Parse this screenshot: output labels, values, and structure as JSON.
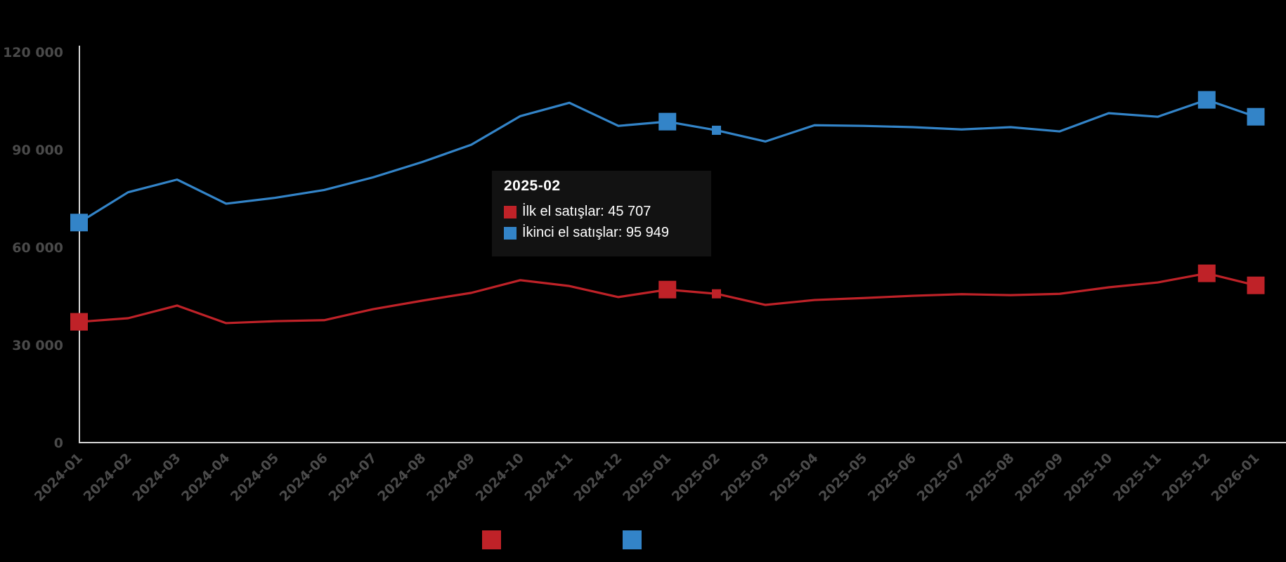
{
  "chart_data": {
    "type": "line",
    "x": [
      "2024-01",
      "2024-02",
      "2024-03",
      "2024-04",
      "2024-05",
      "2024-06",
      "2024-07",
      "2024-08",
      "2024-09",
      "2024-10",
      "2024-11",
      "2024-12",
      "2025-01",
      "2025-02",
      "2025-03",
      "2025-04",
      "2025-05",
      "2025-06",
      "2025-07",
      "2025-08",
      "2025-09",
      "2025-10",
      "2025-11",
      "2025-12",
      "2026-01"
    ],
    "series": [
      {
        "name": "İlk el satışlar",
        "color": "#bf2228",
        "values": [
          37100,
          38200,
          42100,
          36700,
          37300,
          37600,
          41000,
          43600,
          46000,
          49900,
          48100,
          44700,
          47000,
          45707,
          42300,
          43800,
          44400,
          45100,
          45600,
          45300,
          45700,
          47700,
          49200,
          52000,
          48300
        ]
      },
      {
        "name": "İkinci el satışlar",
        "color": "#3384c8",
        "values": [
          67600,
          76900,
          80800,
          73400,
          75200,
          77600,
          81500,
          86200,
          91500,
          100300,
          104400,
          97300,
          98600,
          95949,
          92500,
          97500,
          97300,
          96900,
          96200,
          96900,
          95600,
          101200,
          100100,
          105300,
          100100
        ]
      }
    ],
    "title": "",
    "xlabel": "",
    "ylabel": "",
    "ylim": [
      0,
      120000
    ],
    "yticks": [
      0,
      30000,
      60000,
      90000,
      120000
    ],
    "ytick_labels": [
      "0",
      "30 000",
      "60 000",
      "90 000",
      "120 000"
    ],
    "grid": false,
    "legend_position": "bottom",
    "axis_color": "#d4d4d4",
    "tick_label_color": "#4a4a4a",
    "big_marker_indices": [
      0,
      12,
      23,
      24
    ],
    "small_marker_indices": [
      13
    ],
    "hover_index": 13
  },
  "tooltip": {
    "title": "2025-02",
    "rows": [
      {
        "label": "İlk el satışlar",
        "value": "45 707",
        "display": "İlk el satışlar: 45 707",
        "color": "#bf2228"
      },
      {
        "label": "İkinci el satışlar",
        "value": "95 949",
        "display": "İkinci el satışlar: 95 949",
        "color": "#3384c8"
      }
    ]
  },
  "legend": {
    "items": [
      {
        "name": "İlk el satışlar",
        "color": "#bf2228"
      },
      {
        "name": "İkinci el satışlar",
        "color": "#3384c8"
      }
    ]
  }
}
